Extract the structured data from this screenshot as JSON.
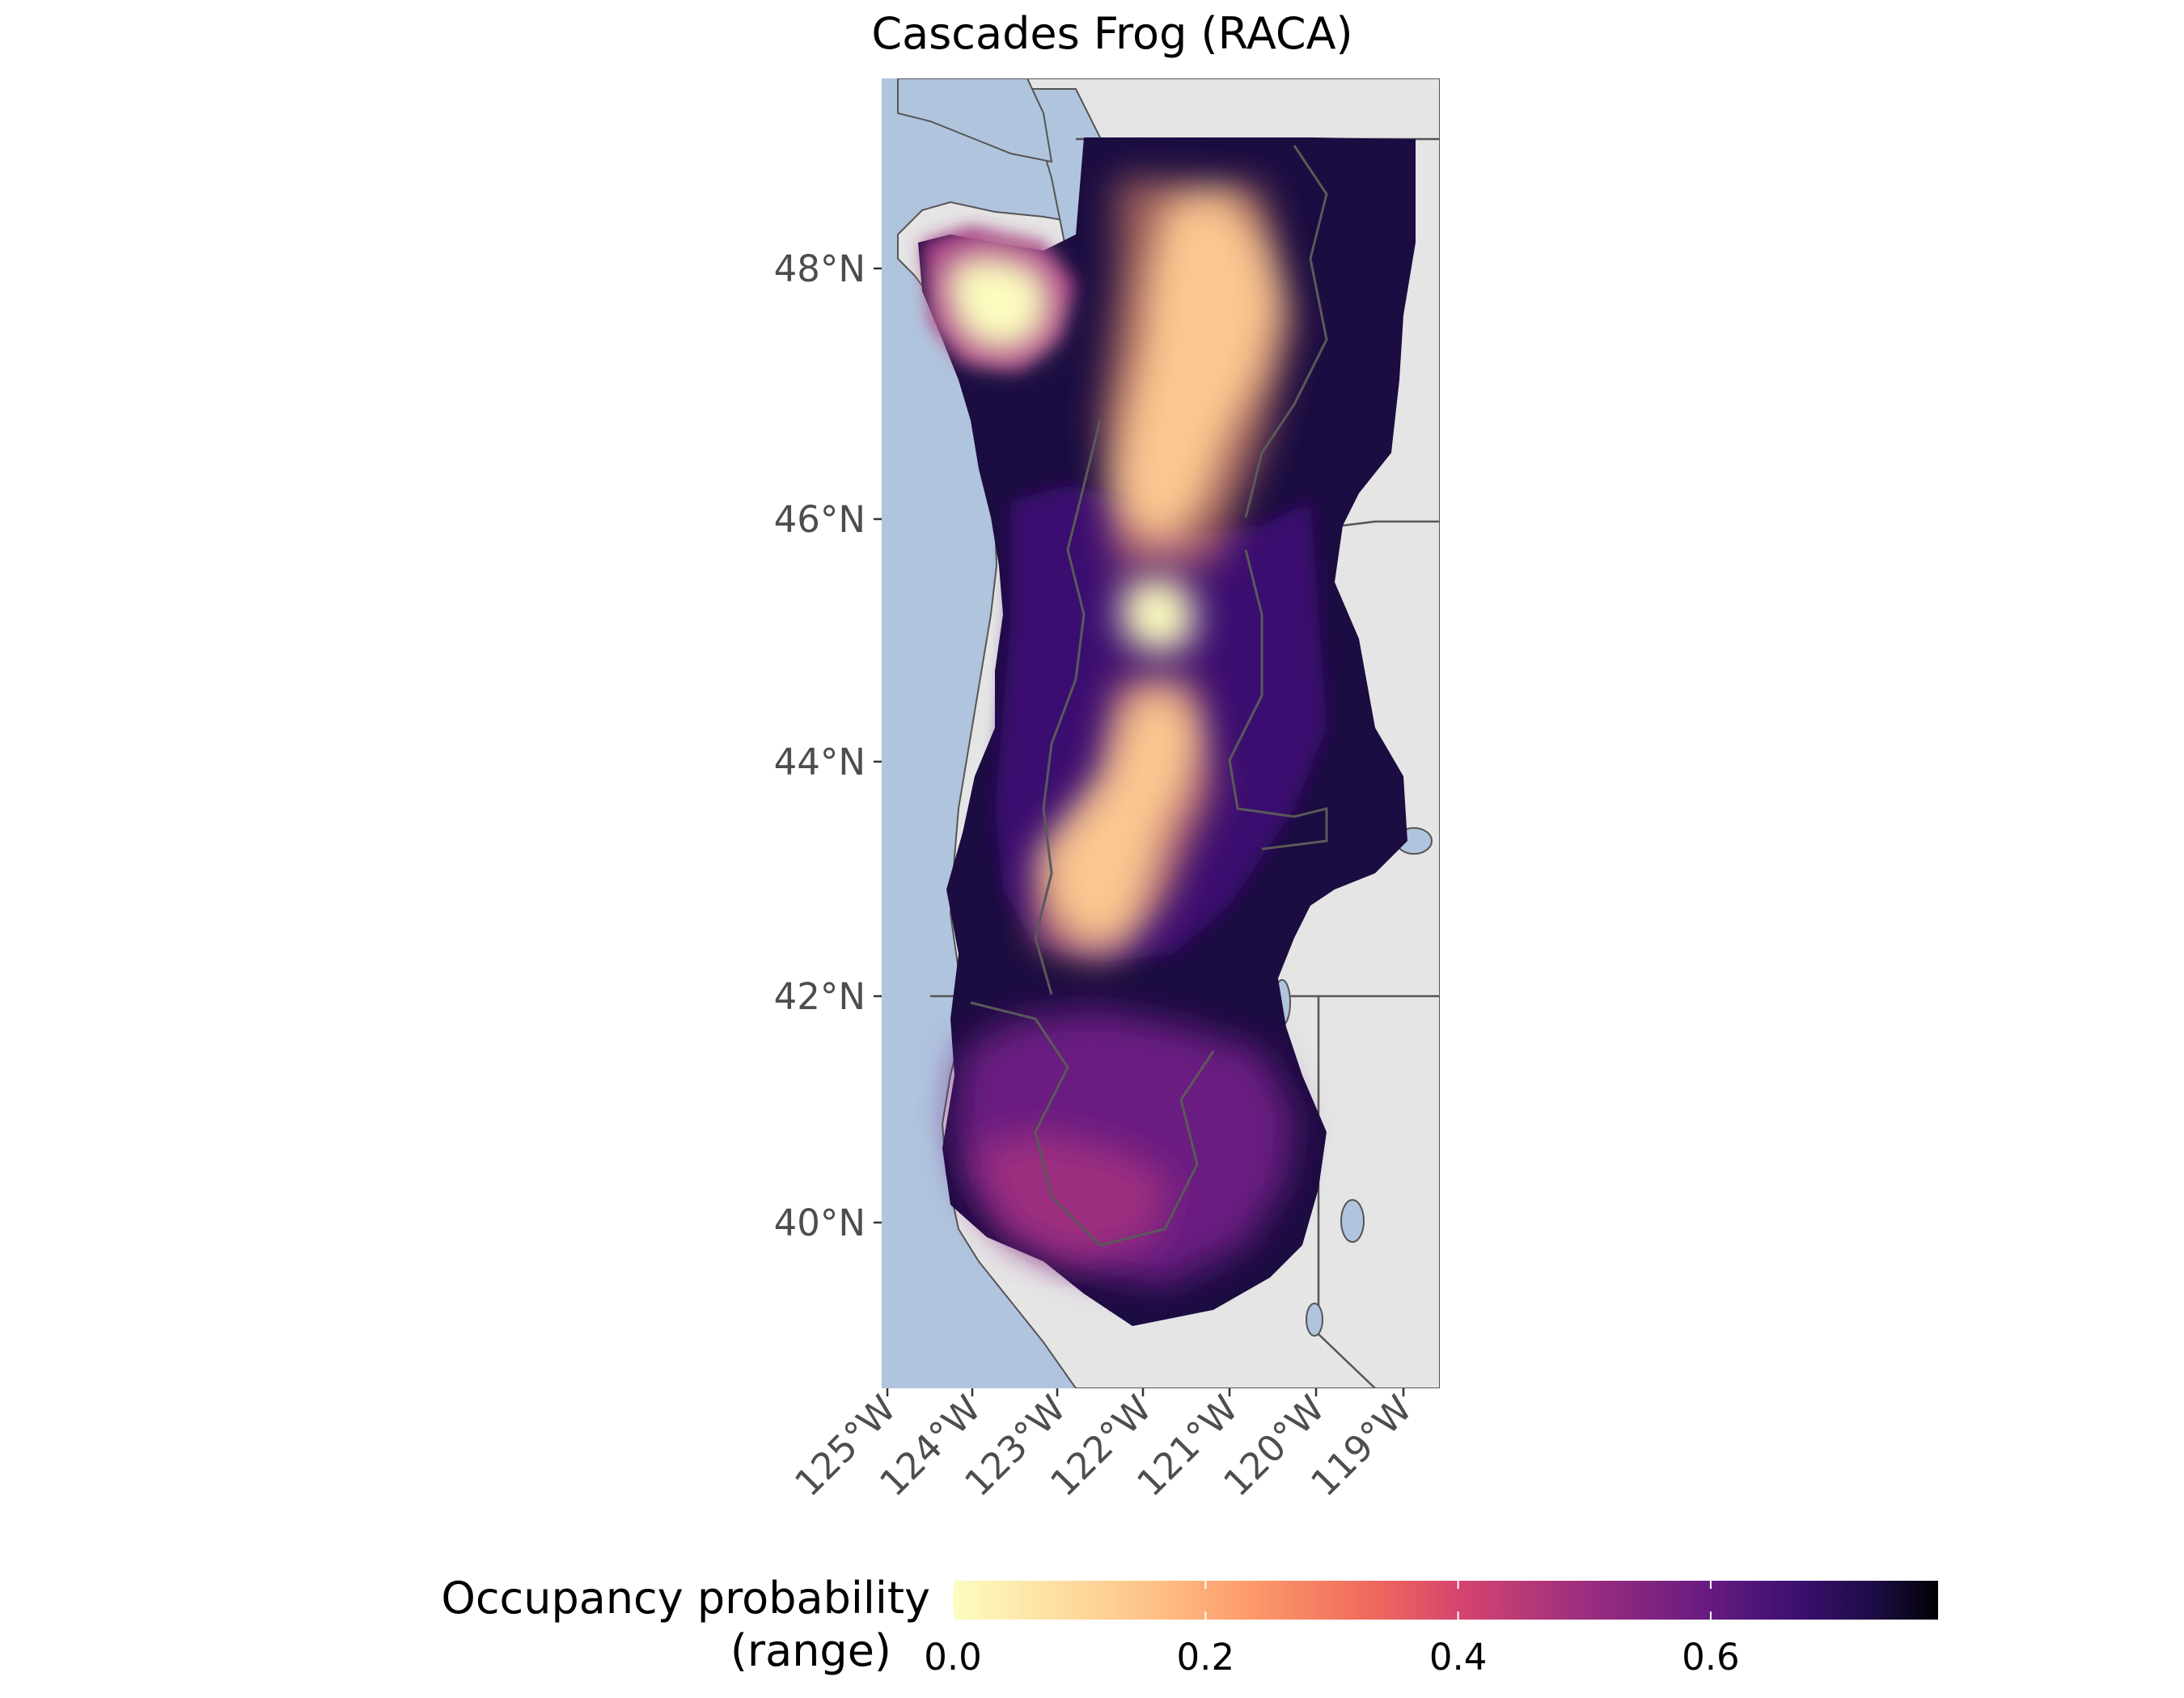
{
  "title": "Cascades Frog (RACA)",
  "axes": {
    "y_ticks": [
      "48°N",
      "46°N",
      "44°N",
      "42°N",
      "40°N"
    ],
    "x_ticks": [
      "125°W",
      "124°W",
      "123°W",
      "122°W",
      "121°W",
      "120°W",
      "119°W"
    ],
    "lat_range": [
      38.6,
      49.4
    ],
    "lon_range": [
      -125.0,
      -118.5
    ]
  },
  "legend": {
    "title_line1": "Occupancy probability",
    "title_line2": "(range)",
    "ticks": [
      "0.0",
      "0.2",
      "0.4",
      "0.6"
    ],
    "tick_values": [
      0.0,
      0.2,
      0.4,
      0.6
    ],
    "range": [
      0.0,
      0.78
    ],
    "palette": [
      "#fcfdbf",
      "#fe9f6d",
      "#de4968",
      "#8c2981",
      "#3b0f70",
      "#000004"
    ]
  },
  "colors": {
    "ocean": "#b0c4de",
    "land": "#e5e5e5",
    "boundary": "#555555"
  }
}
